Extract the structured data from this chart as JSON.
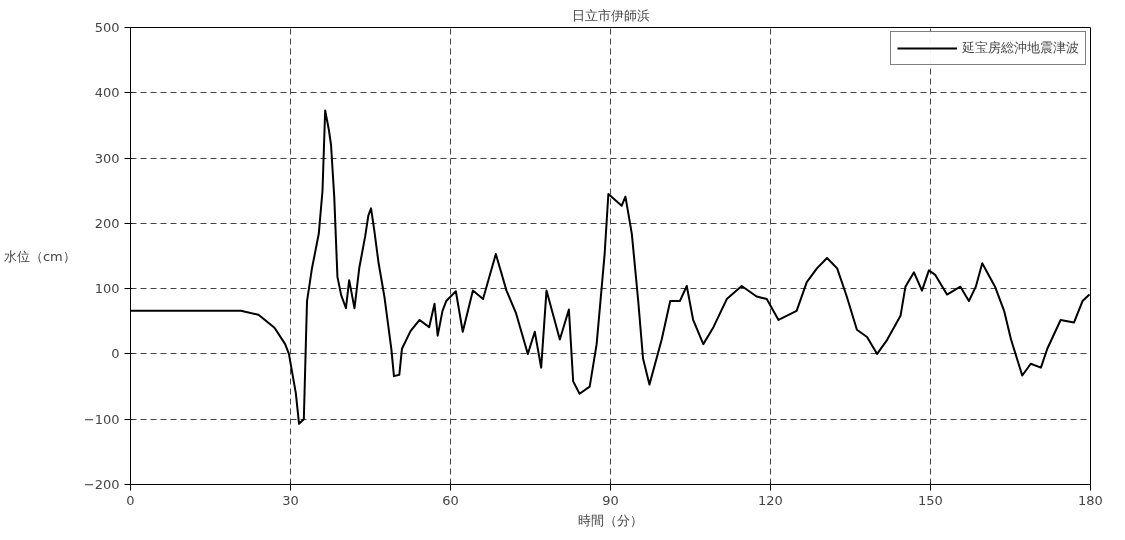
{
  "chart_data": {
    "type": "line",
    "title": "日立市伊師浜",
    "xlabel": "時間（分）",
    "ylabel": "水位（cm）",
    "xlim": [
      0,
      180
    ],
    "xticks": [
      0,
      30,
      60,
      90,
      120,
      150,
      180
    ],
    "ylim": [
      -200,
      500
    ],
    "yticks": [
      -200,
      -100,
      0,
      100,
      200,
      300,
      400,
      500
    ],
    "grid": true,
    "legend": "top right",
    "line_style": "solid",
    "series": [
      {
        "name": "延宝房総沖地震津波",
        "color": "#000000",
        "x": [
          0,
          20.7,
          24,
          27,
          29,
          29.7,
          31,
          31.6,
          32.5,
          32.9,
          33.1,
          34,
          35.3,
          36,
          36.5,
          37.2,
          37.6,
          38.2,
          38.8,
          39.5,
          40.4,
          41,
          42,
          42.9,
          44,
          44.6,
          45.1,
          45.7,
          46.5,
          47.6,
          48.9,
          49.4,
          50.4,
          50.9,
          52.5,
          54.2,
          56,
          57,
          57.6,
          58.5,
          59.2,
          61,
          62.3,
          64.2,
          66.1,
          68.5,
          70.5,
          72.3,
          74.5,
          75.8,
          77,
          78,
          80.5,
          82.2,
          83,
          84.2,
          86.1,
          87.4,
          88.9,
          89.6,
          92.1,
          92.8,
          94,
          95.2,
          96.1,
          97.3,
          99.6,
          101.2,
          103,
          104.3,
          105.5,
          107.4,
          109.3,
          111.8,
          114.6,
          117.4,
          119.3,
          121.5,
          124.9,
          126.8,
          128.7,
          130.6,
          132.5,
          134.3,
          136.2,
          138.1,
          140,
          141.9,
          144.4,
          145.3,
          146.9,
          148.4,
          149.7,
          150.9,
          153.1,
          155.6,
          157.2,
          158.5,
          159.7,
          162.1,
          163.8,
          165.1,
          167.2,
          168.8,
          170.7,
          171.9,
          174.4,
          176.9,
          178.5,
          179.8
        ],
        "values": [
          66,
          66,
          60,
          40,
          15,
          0,
          -60,
          -107,
          -100,
          22,
          81,
          130,
          184,
          250,
          373,
          343,
          320,
          241,
          118,
          90,
          70,
          113,
          70,
          132,
          180,
          212,
          223,
          190,
          140,
          88,
          8,
          -34,
          -32,
          8,
          35,
          52,
          41,
          77,
          28,
          66,
          81,
          96,
          34,
          97,
          84,
          153,
          97,
          62,
          0,
          34,
          -21,
          97,
          22,
          68,
          -42,
          -61,
          -50,
          15,
          153,
          245,
          227,
          241,
          184,
          81,
          -7,
          -47,
          22,
          81,
          81,
          104,
          52,
          15,
          41,
          84,
          104,
          88,
          84,
          52,
          66,
          110,
          131,
          147,
          131,
          88,
          37,
          26,
          0,
          22,
          59,
          103,
          125,
          97,
          128,
          121,
          91,
          103,
          81,
          103,
          139,
          103,
          66,
          22,
          -33,
          -15,
          -21,
          8,
          52,
          48,
          81,
          91
        ]
      }
    ]
  }
}
